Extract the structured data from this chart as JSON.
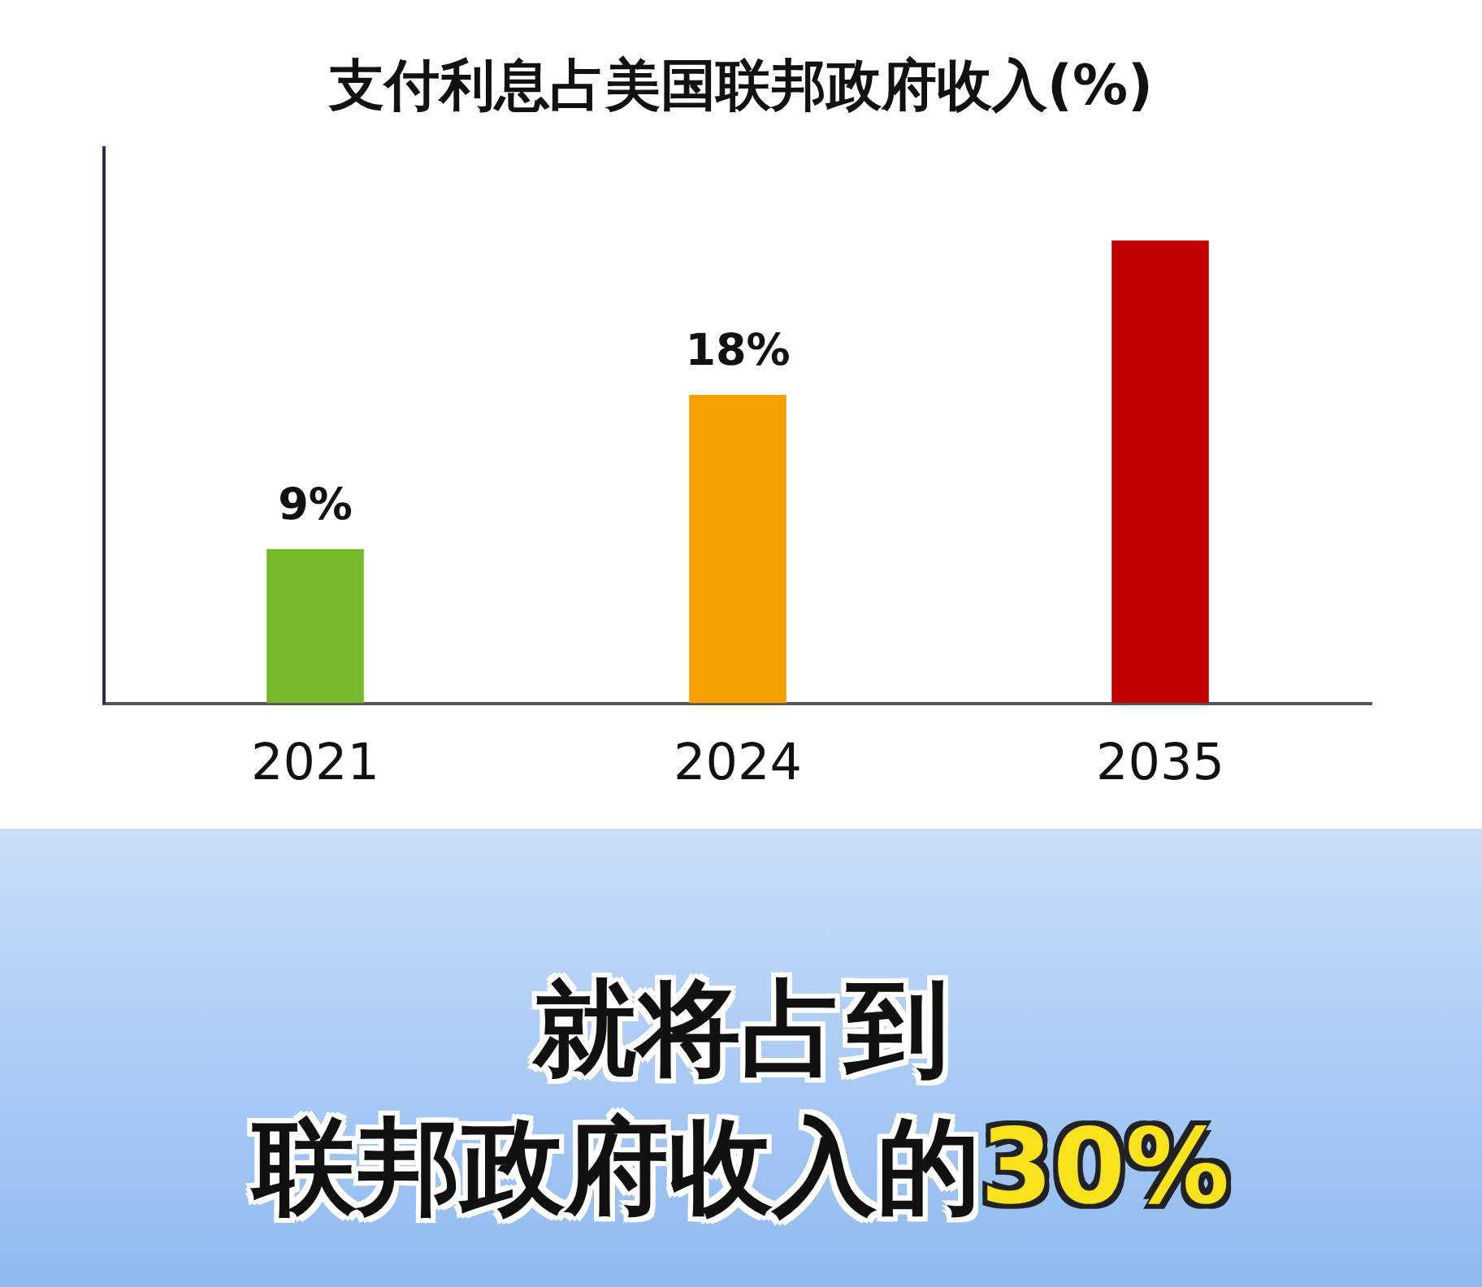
{
  "chart_data": {
    "type": "bar",
    "title": "支付利息占美国联邦政府收入(%)",
    "categories": [
      "2021",
      "2024",
      "2035"
    ],
    "values": [
      9,
      18,
      27
    ],
    "colors": [
      "#76b82a",
      "#f5a000",
      "#c00000"
    ],
    "value_labels": [
      "9%",
      "18%",
      null
    ],
    "ylim": [
      0,
      32.5
    ],
    "tick_labels": "x",
    "annotations": [
      "就将占到",
      "联邦政府收入的",
      "30%"
    ]
  }
}
